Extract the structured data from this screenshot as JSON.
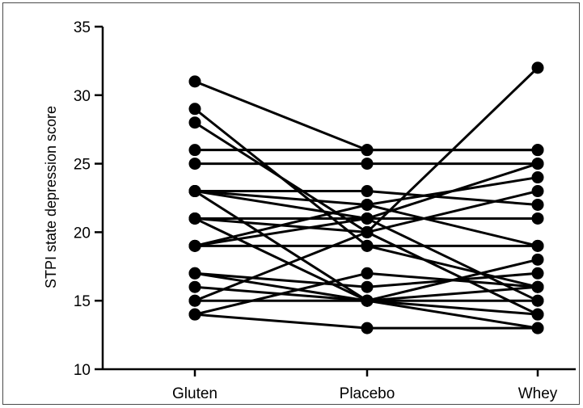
{
  "chart_data": {
    "type": "line",
    "title": "",
    "xlabel": "",
    "ylabel": "STPI state depression score",
    "categories": [
      "Gluten",
      "Placebo",
      "Whey"
    ],
    "ylim": [
      10,
      35
    ],
    "yticks": [
      "10",
      "15",
      "20",
      "25",
      "30",
      "35"
    ],
    "grid": false,
    "legend": "none",
    "color": "#000000",
    "series": [
      {
        "values": [
          31,
          26,
          26
        ]
      },
      {
        "values": [
          29,
          19,
          16
        ]
      },
      {
        "values": [
          28,
          20,
          32
        ]
      },
      {
        "values": [
          26,
          26,
          26
        ]
      },
      {
        "values": [
          25,
          25,
          25
        ]
      },
      {
        "values": [
          23,
          23,
          22
        ]
      },
      {
        "values": [
          23,
          22,
          19
        ]
      },
      {
        "values": [
          23,
          21,
          15
        ]
      },
      {
        "values": [
          23,
          15,
          16
        ]
      },
      {
        "values": [
          21,
          21,
          21
        ]
      },
      {
        "values": [
          21,
          20,
          14
        ]
      },
      {
        "values": [
          21,
          15,
          13
        ]
      },
      {
        "values": [
          19,
          19,
          19
        ]
      },
      {
        "values": [
          19,
          22,
          24
        ]
      },
      {
        "values": [
          17,
          15,
          18
        ]
      },
      {
        "values": [
          16,
          15,
          15
        ]
      },
      {
        "values": [
          15,
          15,
          14
        ]
      },
      {
        "values": [
          14,
          17,
          16
        ]
      },
      {
        "values": [
          14,
          13,
          13
        ]
      },
      {
        "values": [
          15,
          20,
          23
        ]
      },
      {
        "values": [
          17,
          16,
          17
        ]
      },
      {
        "values": [
          19,
          21,
          25
        ]
      }
    ]
  }
}
